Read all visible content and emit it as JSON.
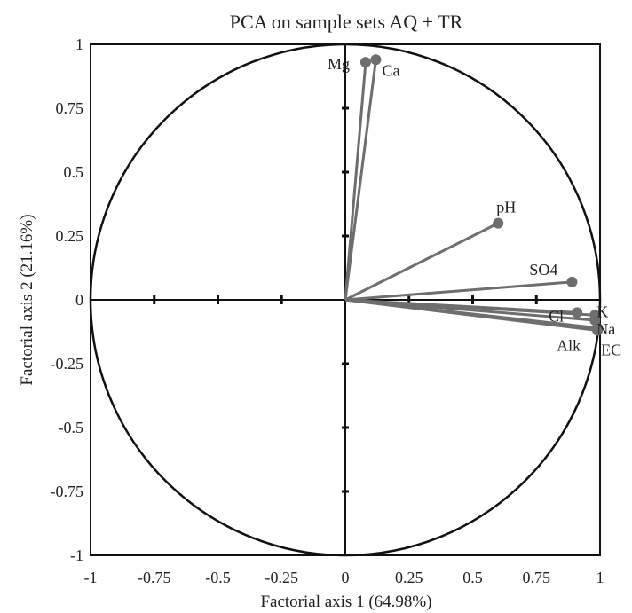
{
  "chart_data": {
    "type": "scatter",
    "subtype": "pca-correlation-circle",
    "title": "PCA on sample sets  AQ + TR",
    "xlabel": "Factorial axis 1 (64.98%)",
    "ylabel": "Factorial axis 2 (21.16%)",
    "xlim": [
      -1,
      1
    ],
    "ylim": [
      -1,
      1
    ],
    "xticks": [
      "-1",
      "-0.75",
      "-0.5",
      "-0.25",
      "0",
      "0.25",
      "0.5",
      "0.75",
      "1"
    ],
    "yticks": [
      "1",
      "0.75",
      "0.5",
      "0.25",
      "0",
      "-0.25",
      "-0.5",
      "-0.75",
      "-1"
    ],
    "unit_circle": true,
    "grid": false,
    "variables": [
      {
        "name": "Mg",
        "x": 0.08,
        "y": 0.93
      },
      {
        "name": "Ca",
        "x": 0.12,
        "y": 0.94
      },
      {
        "name": "pH",
        "x": 0.6,
        "y": 0.3
      },
      {
        "name": "SO4",
        "x": 0.89,
        "y": 0.07
      },
      {
        "name": "Cl",
        "x": 0.91,
        "y": -0.05
      },
      {
        "name": "K",
        "x": 0.98,
        "y": -0.06
      },
      {
        "name": "Na",
        "x": 0.98,
        "y": -0.08
      },
      {
        "name": "Alk",
        "x": 0.99,
        "y": -0.11
      },
      {
        "name": "EC",
        "x": 0.99,
        "y": -0.12
      }
    ],
    "colors": {
      "vector": "#6e6e6e",
      "axes": "#111111",
      "circle": "#111111"
    }
  }
}
